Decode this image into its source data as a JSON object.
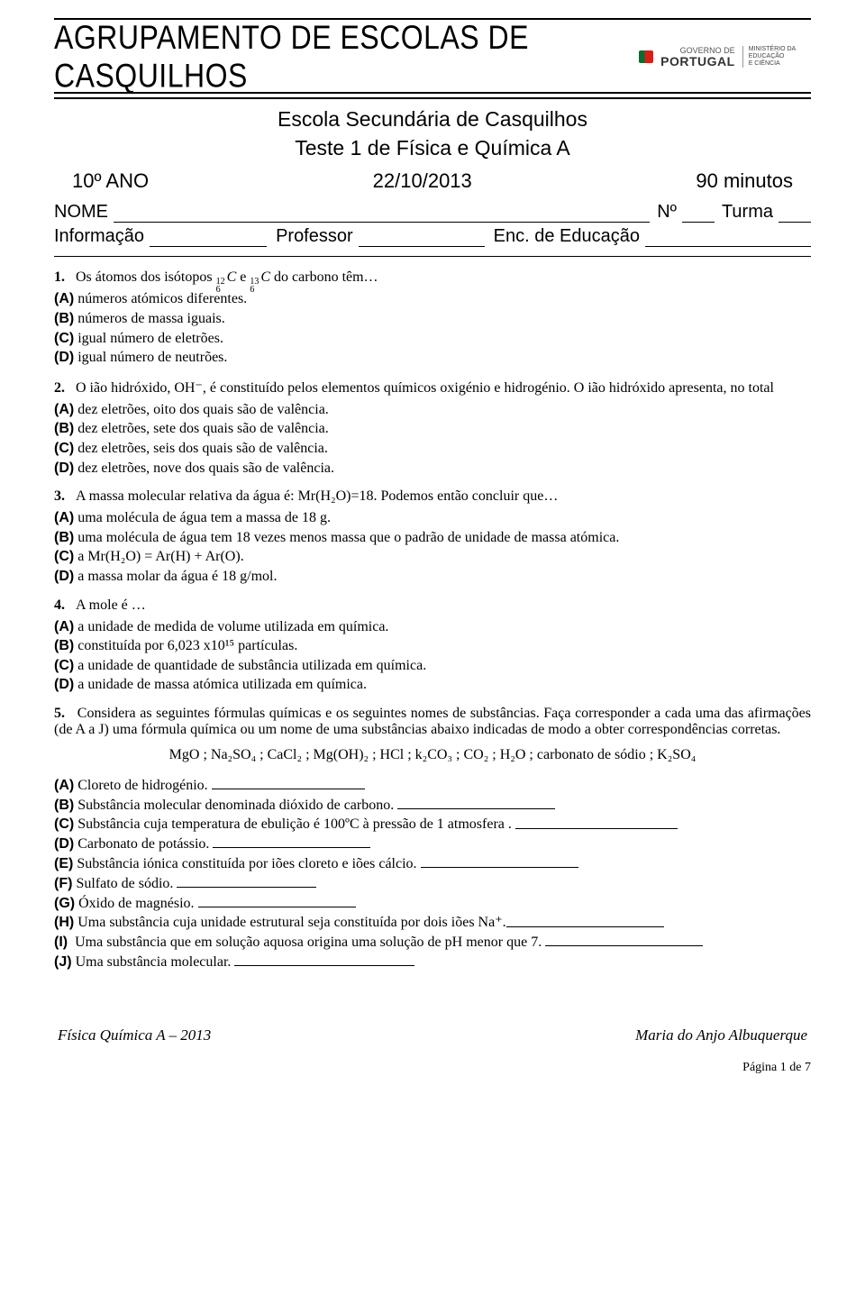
{
  "header": {
    "school_banner": "AGRUPAMENTO DE ESCOLAS DE CASQUILHOS",
    "gov_label_small": "GOVERNO DE",
    "gov_label_big": "PORTUGAL",
    "ministry_line1": "MINISTÉRIO DA EDUCAÇÃO",
    "ministry_line2": "E CIÊNCIA",
    "test_title_line1": "Escola Secundária de Casquilhos",
    "test_title_line2": "Teste 1 de Física e Química A",
    "grade": "10º ANO",
    "date": "22/10/2013",
    "duration": "90 minutos",
    "name_label": "NOME",
    "num_label": "Nº",
    "class_label": "Turma",
    "info_label": "Informação",
    "teacher_label": "Professor",
    "guardian_label": "Enc. de Educação"
  },
  "q1": {
    "num": "1.",
    "stem_a": "Os átomos dos isótopos ",
    "iso1_sup": "12",
    "iso1_sub": "6",
    "iso1_sym": "C",
    "stem_b": " e ",
    "iso2_sup": "13",
    "iso2_sub": "6",
    "iso2_sym": "C",
    "stem_c": " do carbono têm…",
    "A": "números atómicos diferentes.",
    "B": "números de massa iguais.",
    "C": "igual número de eletrões.",
    "D": "igual número de neutrões."
  },
  "q2": {
    "num": "2.",
    "stem": "O ião hidróxido, OH⁻, é constituído pelos elementos químicos oxigénio e hidrogénio. O ião hidróxido apresenta, no total",
    "A": "dez eletrões, oito dos quais são de valência.",
    "B": "dez eletrões, sete dos quais são de valência.",
    "C": "dez eletrões, seis dos quais são de valência.",
    "D": "dez eletrões, nove dos quais são de valência."
  },
  "q3": {
    "num": "3.",
    "stem": "A massa molecular relativa da água é: Mr(H₂O)=18. Podemos então concluir que…",
    "A": "uma molécula de água tem a massa de 18 g.",
    "B": "uma molécula de água tem 18 vezes menos massa que o padrão de unidade de massa atómica.",
    "C": "a Mr(H₂O) = Ar(H) + Ar(O).",
    "D": "a massa molar da água é 18 g/mol."
  },
  "q4": {
    "num": "4.",
    "stem": "A mole é …",
    "A": "a unidade de medida de volume utilizada em química.",
    "B": "constituída por 6,023 x10¹⁵ partículas.",
    "C": "a unidade de quantidade de substância utilizada em química.",
    "D": "a unidade de massa atómica utilizada em química."
  },
  "q5": {
    "num": "5.",
    "stem": "Considera as seguintes fórmulas químicas e os seguintes nomes de substâncias. Faça corresponder a cada uma das afirmações (de A a J) uma fórmula química ou um nome de uma substâncias abaixo indicadas de modo a obter correspondências corretas.",
    "formulas": "MgO ; Na₂SO₄ ; CaCl₂ ; Mg(OH)₂ ; HCl ; k₂CO₃ ; CO₂ ; H₂O ; carbonato de sódio ; K₂SO₄",
    "items": {
      "A": "Cloreto de hidrogénio.",
      "B": "Substância molecular denominada dióxido de carbono.",
      "C": "Substância cuja temperatura de ebulição é 100ºC à pressão de 1 atmosfera .",
      "D": "Carbonato de potássio.",
      "E": "Substância iónica constituída por iões cloreto e iões cálcio.",
      "F": "Sulfato de sódio.",
      "G": "Óxido de magnésio.",
      "H": "Uma substância cuja unidade estrutural seja constituída por dois iões Na⁺.",
      "I": "Uma substância que em solução aquosa origina uma solução de pH menor que 7.",
      "J": "Uma substância molecular."
    },
    "blank_widths": {
      "A": 170,
      "B": 175,
      "C": 180,
      "D": 175,
      "E": 175,
      "F": 155,
      "G": 175,
      "H": 175,
      "I": 175,
      "J": 200
    }
  },
  "footer": {
    "left": "Física Química A – 2013",
    "right": "Maria do Anjo Albuquerque",
    "page": "Página 1 de 7"
  },
  "labels": {
    "A": "(A)",
    "B": "(B)",
    "C": "(C)",
    "D": "(D)",
    "E": "(E)",
    "F": "(F)",
    "G": "(G)",
    "H": "(H)",
    "I": "(I)",
    "J": "(J)"
  }
}
